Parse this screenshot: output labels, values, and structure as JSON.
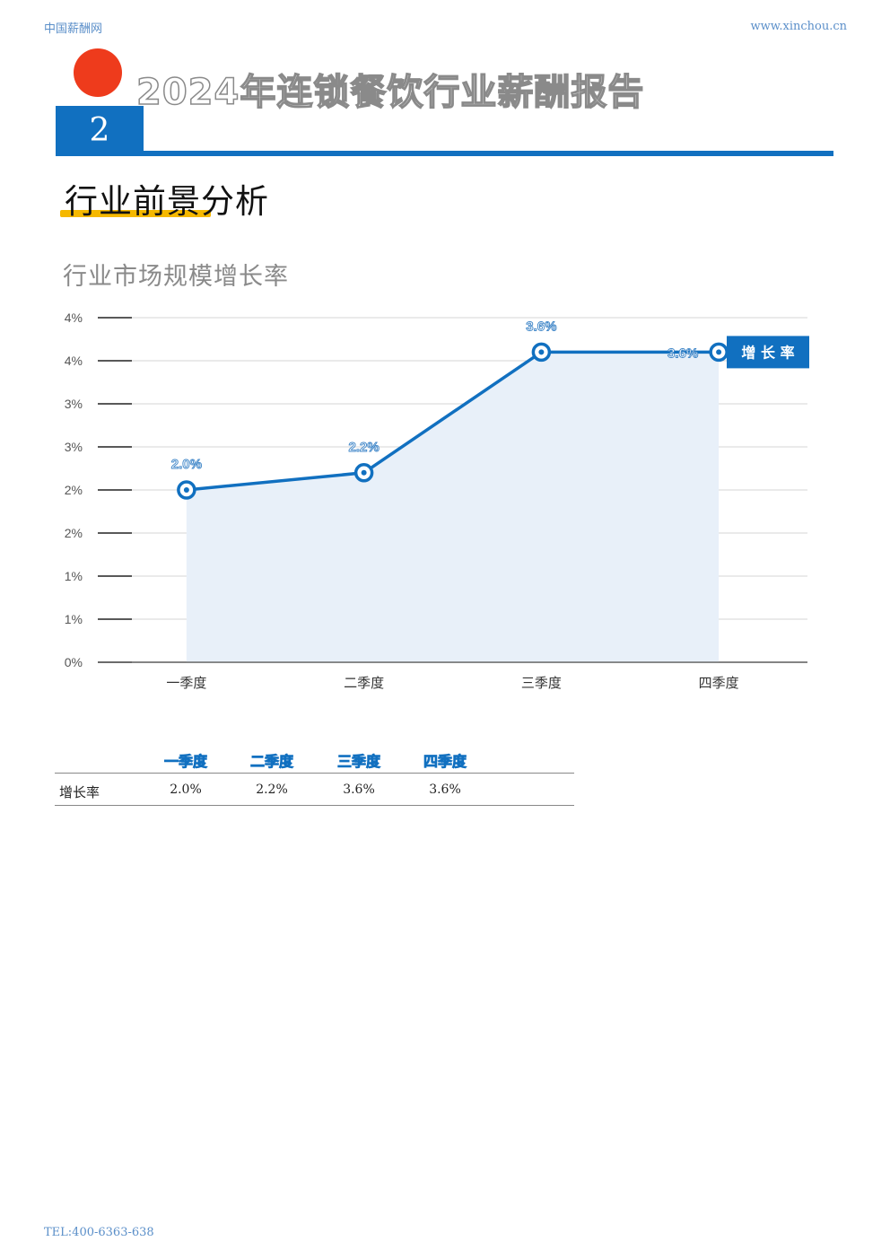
{
  "header": {
    "site_name": "中国薪酬网",
    "site_url": "www.xinchou.cn"
  },
  "report": {
    "title": "2024年连锁餐饮行业薪酬报告",
    "chapter_number": "2"
  },
  "section": {
    "title": "行业前景分析"
  },
  "chart_data": {
    "type": "area",
    "title": "行业市场规模增长率",
    "categories": [
      "一季度",
      "二季度",
      "三季度",
      "四季度"
    ],
    "series": [
      {
        "name": "增长率",
        "values": [
          2.0,
          2.2,
          3.6,
          3.6
        ],
        "labels": [
          "2.0%",
          "2.2%",
          "3.6%",
          "3.6%"
        ]
      }
    ],
    "y_ticks": [
      0,
      0.5,
      1.0,
      1.5,
      2.0,
      2.5,
      3.0,
      3.5,
      4.0
    ],
    "y_tick_labels": [
      "0%",
      "1%",
      "1%",
      "2%",
      "2%",
      "3%",
      "3%",
      "4%",
      "4%"
    ],
    "ylim": [
      0,
      4.0
    ],
    "legend": "增 长 率",
    "color": "#1170c0",
    "fill_color": "#e8f0f9"
  },
  "table": {
    "headers": [
      "一季度",
      "二季度",
      "三季度",
      "四季度"
    ],
    "row_label": "增长率",
    "values": [
      "2.0%",
      "2.2%",
      "3.6%",
      "3.6%"
    ]
  },
  "footer": {
    "phone": "TEL:400-6363-638"
  }
}
